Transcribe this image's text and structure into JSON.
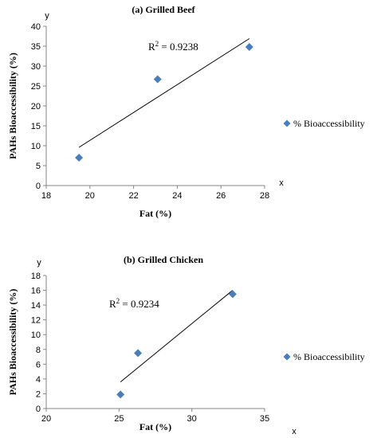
{
  "chart_data": [
    {
      "type": "scatter",
      "title": "(a) Grilled Beef",
      "xlabel": "Fat (%)",
      "ylabel": "PAHs Bioaccessibility (%)",
      "x_corner": "x",
      "y_corner": "y",
      "xlim": [
        18,
        28
      ],
      "ylim": [
        0,
        40
      ],
      "xticks": [
        18,
        20,
        22,
        24,
        26,
        28
      ],
      "yticks": [
        0,
        5,
        10,
        15,
        20,
        25,
        30,
        35,
        40
      ],
      "series": [
        {
          "name": "% Bioaccessibility",
          "color": "#4a7ebb",
          "points": [
            {
              "x": 19.5,
              "y": 7.0
            },
            {
              "x": 23.1,
              "y": 26.7
            },
            {
              "x": 27.3,
              "y": 34.8
            }
          ]
        }
      ],
      "trendline": {
        "x_start": 19.5,
        "y_start": 9.6,
        "x_end": 27.3,
        "y_end": 36.9
      },
      "annotation": {
        "label": "R",
        "sup": "2",
        "rest": " = 0.9238"
      },
      "legend": "right",
      "grid": false
    },
    {
      "type": "scatter",
      "title": "(b) Grilled Chicken",
      "xlabel": "Fat (%)",
      "ylabel": "PAHs Bioaccessibility (%)",
      "x_corner": "x",
      "y_corner": "y",
      "xlim": [
        20,
        35
      ],
      "ylim": [
        0,
        18
      ],
      "xticks": [
        20,
        25,
        30,
        35
      ],
      "yticks": [
        0,
        2,
        4,
        6,
        8,
        10,
        12,
        14,
        16,
        18
      ],
      "series": [
        {
          "name": "% Bioaccessibility",
          "color": "#4a7ebb",
          "points": [
            {
              "x": 25.1,
              "y": 1.9
            },
            {
              "x": 26.3,
              "y": 7.5
            },
            {
              "x": 32.8,
              "y": 15.5
            }
          ]
        }
      ],
      "trendline": {
        "x_start": 25.1,
        "y_start": 3.6,
        "x_end": 32.8,
        "y_end": 16.0
      },
      "annotation": {
        "label": "R",
        "sup": "2",
        "rest": " = 0.9234"
      },
      "legend": "right",
      "grid": false
    }
  ]
}
